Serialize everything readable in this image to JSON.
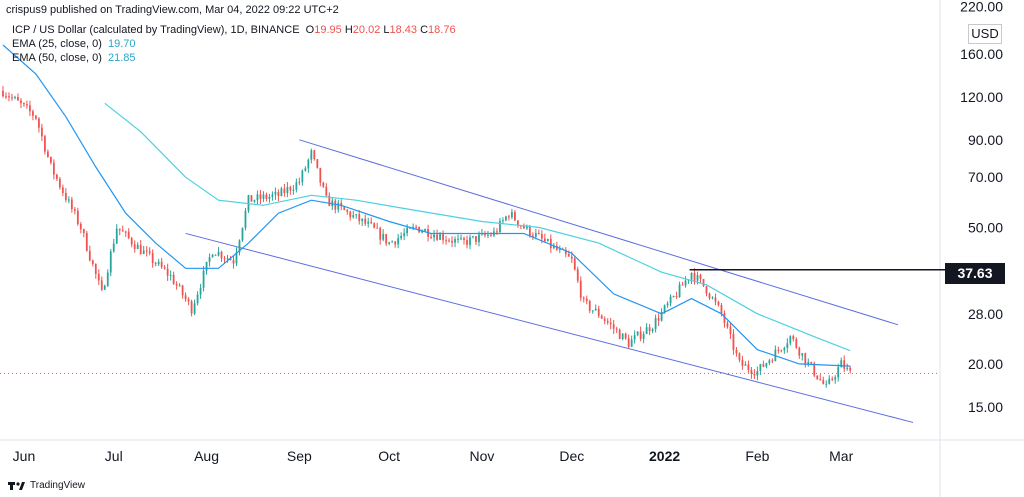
{
  "header": {
    "attribution": "crispus9 published on TradingView.com, Mar 04, 2022 09:22 UTC+2"
  },
  "legend": {
    "symbol": "ICP / US Dollar (calculated by TradingView), 1D, BINANCE",
    "ohlc": {
      "o_label": "O",
      "o": "19.95",
      "h_label": "H",
      "h": "20.02",
      "l_label": "L",
      "l": "18.43",
      "c_label": "C",
      "c": "18.76"
    },
    "ema25": {
      "label": "EMA (25, close, 0)",
      "value": "19.70"
    },
    "ema50": {
      "label": "EMA (50, close, 0)",
      "value": "21.85"
    }
  },
  "currency_badge": "USD",
  "price_tag": "37.63",
  "footer": {
    "brand": "TradingView"
  },
  "colors": {
    "up": "#26a69a",
    "down": "#ef5350",
    "ema25": "#2196f3",
    "ema50": "#4dd0e1",
    "channel": "#5b6ee1",
    "level": "#131722"
  },
  "chart_data": {
    "type": "candlestick",
    "scale": "log",
    "ylim": [
      12,
      230
    ],
    "y_ticks": [
      "220.00",
      "160.00",
      "120.00",
      "90.00",
      "70.00",
      "50.00",
      "28.00",
      "20.00",
      "15.00"
    ],
    "x_ticks": [
      "Jun",
      "Jul",
      "Aug",
      "Sep",
      "Oct",
      "Nov",
      "Dec",
      "2022",
      "Feb",
      "Mar"
    ],
    "ema25": [
      {
        "t": "2021-05-25",
        "v": 170
      },
      {
        "t": "2021-06-05",
        "v": 140
      },
      {
        "t": "2021-06-15",
        "v": 105
      },
      {
        "t": "2021-06-25",
        "v": 75
      },
      {
        "t": "2021-07-05",
        "v": 55
      },
      {
        "t": "2021-07-15",
        "v": 45
      },
      {
        "t": "2021-07-25",
        "v": 38
      },
      {
        "t": "2021-08-05",
        "v": 38
      },
      {
        "t": "2021-08-15",
        "v": 45
      },
      {
        "t": "2021-08-25",
        "v": 55
      },
      {
        "t": "2021-09-05",
        "v": 60
      },
      {
        "t": "2021-09-15",
        "v": 58
      },
      {
        "t": "2021-10-01",
        "v": 52
      },
      {
        "t": "2021-10-15",
        "v": 48
      },
      {
        "t": "2021-11-01",
        "v": 48
      },
      {
        "t": "2021-11-15",
        "v": 48
      },
      {
        "t": "2021-12-01",
        "v": 42
      },
      {
        "t": "2021-12-15",
        "v": 32
      },
      {
        "t": "2021-12-31",
        "v": 28
      },
      {
        "t": "2022-01-10",
        "v": 31
      },
      {
        "t": "2022-01-20",
        "v": 28
      },
      {
        "t": "2022-02-01",
        "v": 22
      },
      {
        "t": "2022-02-15",
        "v": 20
      },
      {
        "t": "2022-03-04",
        "v": 19.7
      }
    ],
    "ema50": [
      {
        "t": "2021-06-28",
        "v": 115
      },
      {
        "t": "2021-07-10",
        "v": 95
      },
      {
        "t": "2021-07-25",
        "v": 70
      },
      {
        "t": "2021-08-05",
        "v": 60
      },
      {
        "t": "2021-08-20",
        "v": 58
      },
      {
        "t": "2021-09-05",
        "v": 62
      },
      {
        "t": "2021-09-20",
        "v": 60
      },
      {
        "t": "2021-10-10",
        "v": 56
      },
      {
        "t": "2021-11-01",
        "v": 52
      },
      {
        "t": "2021-11-20",
        "v": 50
      },
      {
        "t": "2021-12-10",
        "v": 45
      },
      {
        "t": "2021-12-31",
        "v": 37
      },
      {
        "t": "2022-01-15",
        "v": 34
      },
      {
        "t": "2022-02-01",
        "v": 28
      },
      {
        "t": "2022-02-20",
        "v": 24
      },
      {
        "t": "2022-03-04",
        "v": 21.85
      }
    ],
    "channel_upper": [
      {
        "t": "2021-09-01",
        "v": 90
      },
      {
        "t": "2022-03-20",
        "v": 26
      }
    ],
    "channel_lower": [
      {
        "t": "2021-07-25",
        "v": 48
      },
      {
        "t": "2022-03-25",
        "v": 13.5
      }
    ],
    "resistance": {
      "t_start": "2022-01-01",
      "t_end": "2022-03-31",
      "v": 37.63
    },
    "last_price": 18.76,
    "anchors": [
      {
        "t": "2021-05-25",
        "v": 125
      },
      {
        "t": "2021-06-05",
        "v": 105
      },
      {
        "t": "2021-06-10",
        "v": 75
      },
      {
        "t": "2021-06-20",
        "v": 50
      },
      {
        "t": "2021-06-27",
        "v": 32
      },
      {
        "t": "2021-07-02",
        "v": 50
      },
      {
        "t": "2021-07-10",
        "v": 43
      },
      {
        "t": "2021-07-20",
        "v": 36
      },
      {
        "t": "2021-07-27",
        "v": 29
      },
      {
        "t": "2021-08-03",
        "v": 43
      },
      {
        "t": "2021-08-10",
        "v": 40
      },
      {
        "t": "2021-08-15",
        "v": 60
      },
      {
        "t": "2021-08-25",
        "v": 62
      },
      {
        "t": "2021-09-01",
        "v": 68
      },
      {
        "t": "2021-09-05",
        "v": 82
      },
      {
        "t": "2021-09-10",
        "v": 60
      },
      {
        "t": "2021-09-25",
        "v": 50
      },
      {
        "t": "2021-10-01",
        "v": 45
      },
      {
        "t": "2021-10-10",
        "v": 50
      },
      {
        "t": "2021-10-25",
        "v": 45
      },
      {
        "t": "2021-11-05",
        "v": 48
      },
      {
        "t": "2021-11-10",
        "v": 55
      },
      {
        "t": "2021-11-15",
        "v": 50
      },
      {
        "t": "2021-12-01",
        "v": 40
      },
      {
        "t": "2021-12-05",
        "v": 30
      },
      {
        "t": "2021-12-10",
        "v": 28
      },
      {
        "t": "2021-12-20",
        "v": 23
      },
      {
        "t": "2021-12-28",
        "v": 26
      },
      {
        "t": "2022-01-05",
        "v": 32
      },
      {
        "t": "2022-01-10",
        "v": 37
      },
      {
        "t": "2022-01-15",
        "v": 33
      },
      {
        "t": "2022-01-20",
        "v": 28
      },
      {
        "t": "2022-01-26",
        "v": 20
      },
      {
        "t": "2022-02-01",
        "v": 19
      },
      {
        "t": "2022-02-08",
        "v": 22
      },
      {
        "t": "2022-02-12",
        "v": 24
      },
      {
        "t": "2022-02-18",
        "v": 20
      },
      {
        "t": "2022-02-24",
        "v": 17
      },
      {
        "t": "2022-03-01",
        "v": 20
      },
      {
        "t": "2022-03-04",
        "v": 18.76
      }
    ]
  }
}
